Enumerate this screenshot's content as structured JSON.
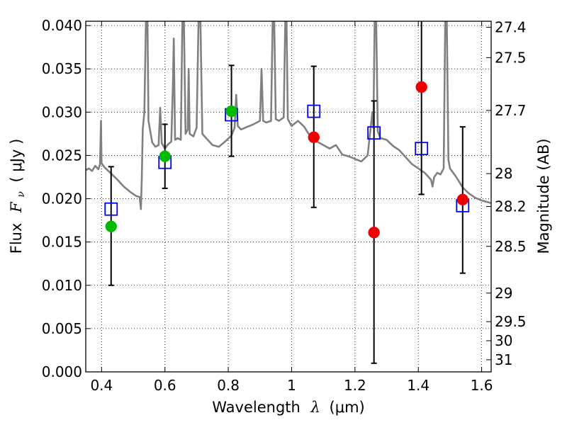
{
  "chart_data": {
    "type": "scatter",
    "xlabel": "Wavelength",
    "xlabel_symbol": "λ",
    "xlabel_unit": "(μm)",
    "ylabel": "Flux",
    "ylabel_symbol": "F",
    "ylabel_subscript": "ν",
    "ylabel_unit": "( μJy )",
    "y2label": "Magnitude (AB)",
    "xlim": [
      0.35,
      1.63
    ],
    "ylim": [
      0.0,
      0.0405
    ],
    "grid": true,
    "x_ticks": [
      0.4,
      0.6,
      0.8,
      1.0,
      1.2,
      1.4,
      1.6
    ],
    "x_tick_labels": [
      "0.4",
      "0.6",
      "0.8",
      "1",
      "1.2",
      "1.4",
      "1.6"
    ],
    "y_ticks": [
      0.0,
      0.005,
      0.01,
      0.015,
      0.02,
      0.025,
      0.03,
      0.035,
      0.04
    ],
    "y_tick_labels": [
      "0.000",
      "0.005",
      "0.010",
      "0.015",
      "0.020",
      "0.025",
      "0.030",
      "0.035",
      "0.040"
    ],
    "magnitude_ticks": [
      {
        "label": "27.4",
        "flux": 0.0398
      },
      {
        "label": "27.5",
        "flux": 0.0363
      },
      {
        "label": "27.7",
        "flux": 0.0302
      },
      {
        "label": "28",
        "flux": 0.0229
      },
      {
        "label": "28.2",
        "flux": 0.0191
      },
      {
        "label": "28.5",
        "flux": 0.0145
      },
      {
        "label": "29",
        "flux": 0.0091
      },
      {
        "label": "29.5",
        "flux": 0.0058
      },
      {
        "label": "30",
        "flux": 0.0036
      },
      {
        "label": "31",
        "flux": 0.0014
      }
    ],
    "series": [
      {
        "name": "model_spectrum",
        "kind": "line",
        "color": "#808080",
        "points": [
          [
            0.35,
            0.0233
          ],
          [
            0.36,
            0.0235
          ],
          [
            0.37,
            0.0232
          ],
          [
            0.38,
            0.0238
          ],
          [
            0.39,
            0.0234
          ],
          [
            0.395,
            0.024
          ],
          [
            0.398,
            0.029
          ],
          [
            0.4,
            0.0241
          ],
          [
            0.41,
            0.0236
          ],
          [
            0.43,
            0.0229
          ],
          [
            0.45,
            0.0222
          ],
          [
            0.47,
            0.0214
          ],
          [
            0.49,
            0.0208
          ],
          [
            0.51,
            0.0203
          ],
          [
            0.52,
            0.0202
          ],
          [
            0.524,
            0.0188
          ],
          [
            0.527,
            0.0225
          ],
          [
            0.53,
            0.028
          ],
          [
            0.535,
            0.03
          ],
          [
            0.54,
            0.0405
          ],
          [
            0.545,
            0.0405
          ],
          [
            0.548,
            0.029
          ],
          [
            0.56,
            0.0265
          ],
          [
            0.57,
            0.026
          ],
          [
            0.58,
            0.0262
          ],
          [
            0.585,
            0.0305
          ],
          [
            0.59,
            0.0264
          ],
          [
            0.6,
            0.0258
          ],
          [
            0.61,
            0.0263
          ],
          [
            0.62,
            0.0266
          ],
          [
            0.625,
            0.033
          ],
          [
            0.628,
            0.0385
          ],
          [
            0.632,
            0.0268
          ],
          [
            0.64,
            0.027
          ],
          [
            0.65,
            0.0268
          ],
          [
            0.655,
            0.0405
          ],
          [
            0.66,
            0.0405
          ],
          [
            0.665,
            0.0275
          ],
          [
            0.672,
            0.028
          ],
          [
            0.675,
            0.035
          ],
          [
            0.678,
            0.0275
          ],
          [
            0.69,
            0.0272
          ],
          [
            0.7,
            0.0282
          ],
          [
            0.706,
            0.0405
          ],
          [
            0.712,
            0.0405
          ],
          [
            0.718,
            0.0275
          ],
          [
            0.73,
            0.027
          ],
          [
            0.75,
            0.0262
          ],
          [
            0.77,
            0.026
          ],
          [
            0.79,
            0.0266
          ],
          [
            0.81,
            0.0273
          ],
          [
            0.82,
            0.0282
          ],
          [
            0.825,
            0.032
          ],
          [
            0.83,
            0.0284
          ],
          [
            0.84,
            0.028
          ],
          [
            0.86,
            0.0283
          ],
          [
            0.88,
            0.0286
          ],
          [
            0.9,
            0.029
          ],
          [
            0.905,
            0.035
          ],
          [
            0.91,
            0.029
          ],
          [
            0.92,
            0.0288
          ],
          [
            0.935,
            0.029
          ],
          [
            0.94,
            0.0405
          ],
          [
            0.945,
            0.0405
          ],
          [
            0.95,
            0.0292
          ],
          [
            0.96,
            0.029
          ],
          [
            0.975,
            0.0294
          ],
          [
            0.98,
            0.0405
          ],
          [
            0.984,
            0.0405
          ],
          [
            0.988,
            0.0292
          ],
          [
            1.0,
            0.0284
          ],
          [
            1.02,
            0.029
          ],
          [
            1.04,
            0.0283
          ],
          [
            1.05,
            0.0277
          ],
          [
            1.06,
            0.0272
          ],
          [
            1.08,
            0.0266
          ],
          [
            1.1,
            0.0262
          ],
          [
            1.12,
            0.0258
          ],
          [
            1.14,
            0.0262
          ],
          [
            1.16,
            0.0251
          ],
          [
            1.18,
            0.0249
          ],
          [
            1.2,
            0.0246
          ],
          [
            1.22,
            0.0243
          ],
          [
            1.24,
            0.025
          ],
          [
            1.255,
            0.03
          ],
          [
            1.258,
            0.0282
          ],
          [
            1.262,
            0.0405
          ],
          [
            1.267,
            0.0405
          ],
          [
            1.272,
            0.0278
          ],
          [
            1.28,
            0.027
          ],
          [
            1.3,
            0.0268
          ],
          [
            1.32,
            0.0261
          ],
          [
            1.34,
            0.0256
          ],
          [
            1.36,
            0.0248
          ],
          [
            1.38,
            0.024
          ],
          [
            1.4,
            0.0235
          ],
          [
            1.42,
            0.023
          ],
          [
            1.44,
            0.0222
          ],
          [
            1.445,
            0.0214
          ],
          [
            1.45,
            0.0225
          ],
          [
            1.46,
            0.023
          ],
          [
            1.47,
            0.0228
          ],
          [
            1.48,
            0.0235
          ],
          [
            1.485,
            0.0405
          ],
          [
            1.49,
            0.0405
          ],
          [
            1.495,
            0.0245
          ],
          [
            1.5,
            0.0235
          ],
          [
            1.52,
            0.0225
          ],
          [
            1.54,
            0.0213
          ],
          [
            1.56,
            0.0206
          ],
          [
            1.58,
            0.0201
          ],
          [
            1.6,
            0.0198
          ],
          [
            1.63,
            0.0195
          ]
        ]
      },
      {
        "name": "model_photometry",
        "kind": "open-square",
        "color": "#0000ff",
        "x": [
          0.43,
          0.6,
          0.81,
          1.07,
          1.26,
          1.41,
          1.54
        ],
        "y": [
          0.0188,
          0.0242,
          0.0297,
          0.0301,
          0.0276,
          0.0258,
          0.0192
        ]
      },
      {
        "name": "observed_optical",
        "kind": "filled-circle",
        "color": "#00bb00",
        "x": [
          0.43,
          0.6,
          0.81
        ],
        "y": [
          0.0168,
          0.0249,
          0.0301
        ],
        "yerr_low": [
          0.01,
          0.0212,
          0.0249
        ],
        "yerr_high": [
          0.0237,
          0.0286,
          0.0354
        ]
      },
      {
        "name": "observed_nir",
        "kind": "filled-circle",
        "color": "#ee0000",
        "x": [
          1.07,
          1.26,
          1.41,
          1.54
        ],
        "y": [
          0.0271,
          0.0161,
          0.0329,
          0.0199
        ],
        "yerr_low": [
          0.019,
          0.001,
          0.0205,
          0.0114
        ],
        "yerr_high": [
          0.0353,
          0.0313,
          0.0405,
          0.0283
        ]
      }
    ]
  }
}
